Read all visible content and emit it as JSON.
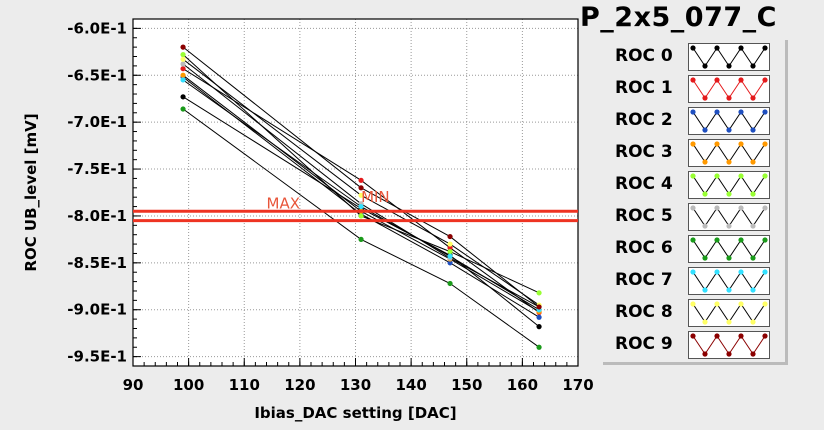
{
  "title": "P_2x5_077_C",
  "chart_data": {
    "type": "line",
    "xlabel": "Ibias_DAC setting [DAC]",
    "ylabel": "ROC UB_level [mV]",
    "xlim": [
      90,
      170
    ],
    "ylim": [
      -0.96,
      -0.59
    ],
    "xticks": [
      "90",
      "100",
      "110",
      "120",
      "130",
      "140",
      "150",
      "160",
      "170"
    ],
    "yticks": [
      "-6.0E-1",
      "-6.5E-1",
      "-7.0E-1",
      "-7.5E-1",
      "-8.0E-1",
      "-8.5E-1",
      "-9.0E-1",
      "-9.5E-1"
    ],
    "grid": true,
    "hlines": [
      -0.795,
      -0.805
    ],
    "annotations": [
      {
        "text": "MAX",
        "x": 114,
        "y": -0.792
      },
      {
        "text": "MIN",
        "x": 131,
        "y": -0.785
      }
    ],
    "series": [
      {
        "name": "ROC 0",
        "color": "#000000",
        "x": [
          99,
          131,
          147,
          163
        ],
        "y": [
          -0.673,
          -0.792,
          -0.842,
          -0.918
        ]
      },
      {
        "name": "ROC 1",
        "color": "#e41a1c",
        "x": [
          99,
          131,
          147,
          163
        ],
        "y": [
          -0.643,
          -0.762,
          -0.834,
          -0.903
        ]
      },
      {
        "name": "ROC 2",
        "color": "#1f4fbf",
        "x": [
          99,
          131,
          147,
          163
        ],
        "y": [
          -0.652,
          -0.798,
          -0.85,
          -0.908
        ]
      },
      {
        "name": "ROC 3",
        "color": "#ff9900",
        "x": [
          99,
          131,
          147,
          163
        ],
        "y": [
          -0.65,
          -0.795,
          -0.846,
          -0.902
        ]
      },
      {
        "name": "ROC 4",
        "color": "#99ff33",
        "x": [
          99,
          131,
          147,
          163
        ],
        "y": [
          -0.628,
          -0.8,
          -0.838,
          -0.882
        ]
      },
      {
        "name": "ROC 5",
        "color": "#bbbbbb",
        "x": [
          99,
          131,
          147,
          163
        ],
        "y": [
          -0.638,
          -0.787,
          -0.845,
          -0.897
        ]
      },
      {
        "name": "ROC 6",
        "color": "#1a9a1a",
        "x": [
          99,
          131,
          147,
          163
        ],
        "y": [
          -0.686,
          -0.825,
          -0.872,
          -0.94
        ]
      },
      {
        "name": "ROC 7",
        "color": "#33e0ff",
        "x": [
          99,
          131,
          147,
          163
        ],
        "y": [
          -0.655,
          -0.79,
          -0.843,
          -0.9
        ]
      },
      {
        "name": "ROC 8",
        "color": "#ffff66",
        "x": [
          99,
          131,
          147,
          163
        ],
        "y": [
          -0.633,
          -0.778,
          -0.83,
          -0.895
        ]
      },
      {
        "name": "ROC 9",
        "color": "#8b0000",
        "x": [
          99,
          131,
          147,
          163
        ],
        "y": [
          -0.62,
          -0.77,
          -0.822,
          -0.897
        ]
      }
    ]
  },
  "legend": {
    "items": [
      {
        "label": "ROC 0",
        "color": "#000000",
        "line": "#000000"
      },
      {
        "label": "ROC 1",
        "color": "#e41a1c",
        "line": "#e41a1c"
      },
      {
        "label": "ROC 2",
        "color": "#1f4fbf",
        "line": "#000000"
      },
      {
        "label": "ROC 3",
        "color": "#ff9900",
        "line": "#000000"
      },
      {
        "label": "ROC 4",
        "color": "#99ff33",
        "line": "#000000"
      },
      {
        "label": "ROC 5",
        "color": "#bbbbbb",
        "line": "#000000"
      },
      {
        "label": "ROC 6",
        "color": "#1a9a1a",
        "line": "#000000"
      },
      {
        "label": "ROC 7",
        "color": "#33e0ff",
        "line": "#000000"
      },
      {
        "label": "ROC 8",
        "color": "#ffff66",
        "line": "#000000"
      },
      {
        "label": "ROC 9",
        "color": "#8b0000",
        "line": "#8b0000"
      }
    ]
  }
}
